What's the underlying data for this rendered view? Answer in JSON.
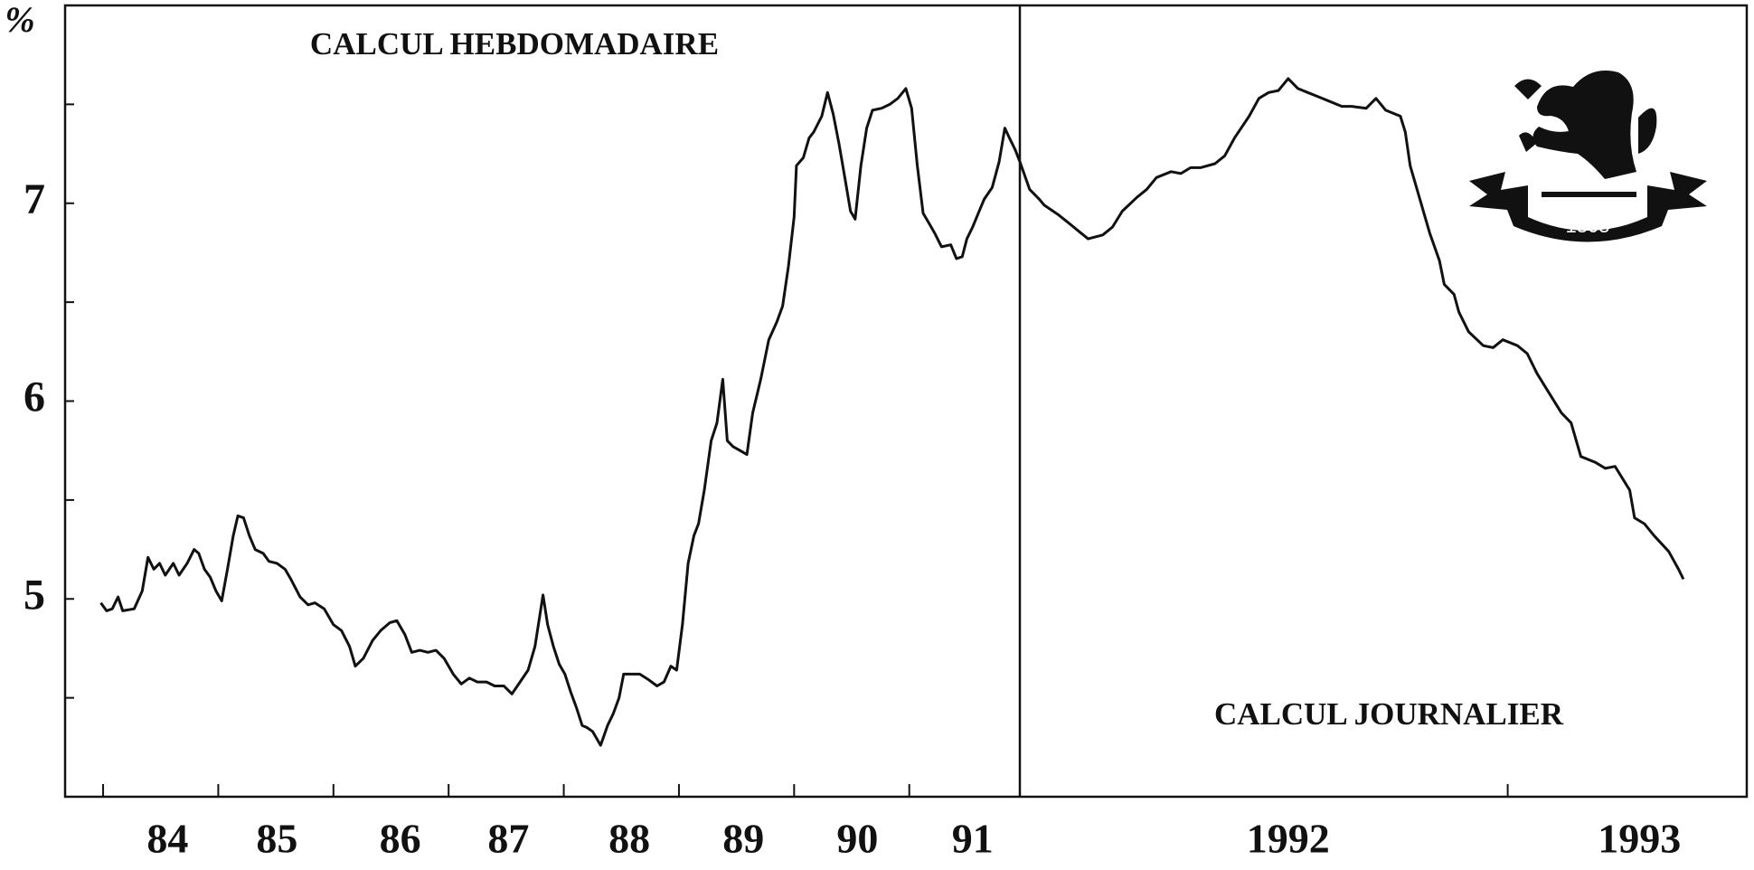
{
  "y_label": "%",
  "logo_text": "1805",
  "chart_data": [
    {
      "type": "line",
      "title": "CALCUL HEBDOMADAIRE",
      "color": "#111111",
      "xlim": [
        1983.67,
        1991.96
      ],
      "ylim": [
        4,
        8
      ],
      "yticks": [
        5,
        6,
        7
      ],
      "yminorticks": [
        4.5,
        5.5,
        6.5,
        7.5
      ],
      "xticks": [
        1984,
        1985,
        1986,
        1987,
        1988,
        1989,
        1990,
        1991
      ],
      "xlabels": [
        {
          "value": 1984.56,
          "label": "84"
        },
        {
          "value": 1985.51,
          "label": "85"
        },
        {
          "value": 1986.58,
          "label": "86"
        },
        {
          "value": 1987.52,
          "label": "87"
        },
        {
          "value": 1988.57,
          "label": "88"
        },
        {
          "value": 1989.56,
          "label": "89"
        },
        {
          "value": 1990.55,
          "label": "90"
        },
        {
          "value": 1991.55,
          "label": "91"
        }
      ],
      "x": [
        1983.98,
        1984.03,
        1984.08,
        1984.13,
        1984.17,
        1984.27,
        1984.34,
        1984.39,
        1984.44,
        1984.49,
        1984.54,
        1984.61,
        1984.66,
        1984.73,
        1984.79,
        1984.83,
        1984.88,
        1984.93,
        1984.98,
        1985.03,
        1985.08,
        1985.13,
        1985.17,
        1985.22,
        1985.27,
        1985.32,
        1985.39,
        1985.44,
        1985.51,
        1985.58,
        1985.63,
        1985.71,
        1985.78,
        1985.84,
        1985.92,
        1986.0,
        1986.07,
        1986.14,
        1986.19,
        1986.26,
        1986.34,
        1986.41,
        1986.49,
        1986.55,
        1986.62,
        1986.68,
        1986.75,
        1986.82,
        1986.89,
        1986.96,
        1987.04,
        1987.11,
        1987.18,
        1987.25,
        1987.33,
        1987.4,
        1987.48,
        1987.55,
        1987.62,
        1987.69,
        1987.75,
        1987.82,
        1987.86,
        1987.91,
        1987.96,
        1988.01,
        1988.06,
        1988.11,
        1988.16,
        1988.2,
        1988.25,
        1988.32,
        1988.38,
        1988.43,
        1988.48,
        1988.52,
        1988.59,
        1988.66,
        1988.74,
        1988.81,
        1988.87,
        1988.93,
        1988.98,
        1989.03,
        1989.08,
        1989.13,
        1989.17,
        1989.22,
        1989.28,
        1989.33,
        1989.38,
        1989.42,
        1989.47,
        1989.53,
        1989.59,
        1989.64,
        1989.71,
        1989.78,
        1989.85,
        1989.9,
        1989.95,
        1990.0,
        1990.02,
        1990.08,
        1990.13,
        1990.17,
        1990.24,
        1990.29,
        1990.34,
        1990.39,
        1990.44,
        1990.49,
        1990.53,
        1990.58,
        1990.63,
        1990.68,
        1990.76,
        1990.83,
        1990.9,
        1990.97,
        1991.02,
        1991.07,
        1991.12,
        1991.17,
        1991.22,
        1991.28,
        1991.36,
        1991.41,
        1991.46,
        1991.5,
        1991.55,
        1991.6,
        1991.65,
        1991.72,
        1991.78,
        1991.83,
        1991.87,
        1991.92,
        1991.96
      ],
      "values": [
        4.98,
        4.94,
        4.95,
        5.01,
        4.94,
        4.95,
        5.04,
        5.21,
        5.15,
        5.18,
        5.12,
        5.18,
        5.12,
        5.18,
        5.25,
        5.23,
        5.15,
        5.11,
        5.04,
        4.99,
        5.15,
        5.32,
        5.42,
        5.41,
        5.32,
        5.25,
        5.23,
        5.19,
        5.18,
        5.15,
        5.1,
        5.01,
        4.97,
        4.98,
        4.95,
        4.87,
        4.84,
        4.76,
        4.66,
        4.7,
        4.79,
        4.84,
        4.88,
        4.89,
        4.82,
        4.73,
        4.74,
        4.73,
        4.74,
        4.7,
        4.62,
        4.57,
        4.6,
        4.58,
        4.58,
        4.56,
        4.56,
        4.52,
        4.58,
        4.64,
        4.76,
        5.02,
        4.87,
        4.76,
        4.67,
        4.62,
        4.53,
        4.45,
        4.36,
        4.35,
        4.33,
        4.26,
        4.36,
        4.42,
        4.5,
        4.62,
        4.62,
        4.62,
        4.59,
        4.56,
        4.58,
        4.66,
        4.64,
        4.87,
        5.18,
        5.32,
        5.38,
        5.55,
        5.8,
        5.89,
        6.11,
        5.8,
        5.77,
        5.75,
        5.73,
        5.94,
        6.11,
        6.31,
        6.4,
        6.48,
        6.68,
        6.93,
        7.19,
        7.23,
        7.33,
        7.36,
        7.44,
        7.56,
        7.45,
        7.3,
        7.13,
        6.96,
        6.92,
        7.19,
        7.38,
        7.47,
        7.48,
        7.5,
        7.53,
        7.58,
        7.48,
        7.19,
        6.95,
        6.9,
        6.85,
        6.78,
        6.79,
        6.72,
        6.73,
        6.82,
        6.88,
        6.95,
        7.02,
        7.08,
        7.21,
        7.38,
        7.33,
        7.27,
        7.21
      ]
    },
    {
      "type": "line",
      "title": "CALCUL JOURNALIER",
      "color": "#111111",
      "xlim": [
        1992,
        1993.49
      ],
      "ylim": [
        4,
        8
      ],
      "xticks": [
        1993
      ],
      "xlabels": [
        {
          "value": 1992.55,
          "label": "1992"
        },
        {
          "value": 1993.27,
          "label": "1993"
        }
      ],
      "x": [
        1992.0,
        1992.02,
        1992.04,
        1992.05,
        1992.08,
        1992.1,
        1992.12,
        1992.14,
        1992.17,
        1992.19,
        1992.21,
        1992.24,
        1992.26,
        1992.28,
        1992.31,
        1992.33,
        1992.35,
        1992.37,
        1992.4,
        1992.42,
        1992.44,
        1992.47,
        1992.49,
        1992.51,
        1992.53,
        1992.55,
        1992.57,
        1992.59,
        1992.61,
        1992.64,
        1992.66,
        1992.68,
        1992.71,
        1992.73,
        1992.75,
        1992.78,
        1992.79,
        1992.8,
        1992.82,
        1992.84,
        1992.86,
        1992.87,
        1992.89,
        1992.9,
        1992.92,
        1992.95,
        1992.97,
        1992.99,
        1993.02,
        1993.04,
        1993.06,
        1993.08,
        1993.11,
        1993.13,
        1993.15,
        1993.18,
        1993.2,
        1993.22,
        1993.25,
        1993.26,
        1993.28,
        1993.3,
        1993.33,
        1993.35,
        1993.36
      ],
      "values": [
        7.21,
        7.07,
        7.02,
        6.99,
        6.94,
        6.9,
        6.86,
        6.82,
        6.84,
        6.88,
        6.96,
        7.03,
        7.07,
        7.13,
        7.16,
        7.15,
        7.18,
        7.18,
        7.2,
        7.24,
        7.33,
        7.44,
        7.53,
        7.56,
        7.57,
        7.63,
        7.58,
        7.56,
        7.54,
        7.51,
        7.49,
        7.49,
        7.48,
        7.53,
        7.47,
        7.44,
        7.36,
        7.19,
        7.02,
        6.85,
        6.71,
        6.59,
        6.54,
        6.45,
        6.35,
        6.28,
        6.27,
        6.31,
        6.28,
        6.24,
        6.14,
        6.06,
        5.94,
        5.89,
        5.72,
        5.69,
        5.66,
        5.67,
        5.55,
        5.41,
        5.38,
        5.32,
        5.24,
        5.15,
        5.1
      ]
    }
  ]
}
